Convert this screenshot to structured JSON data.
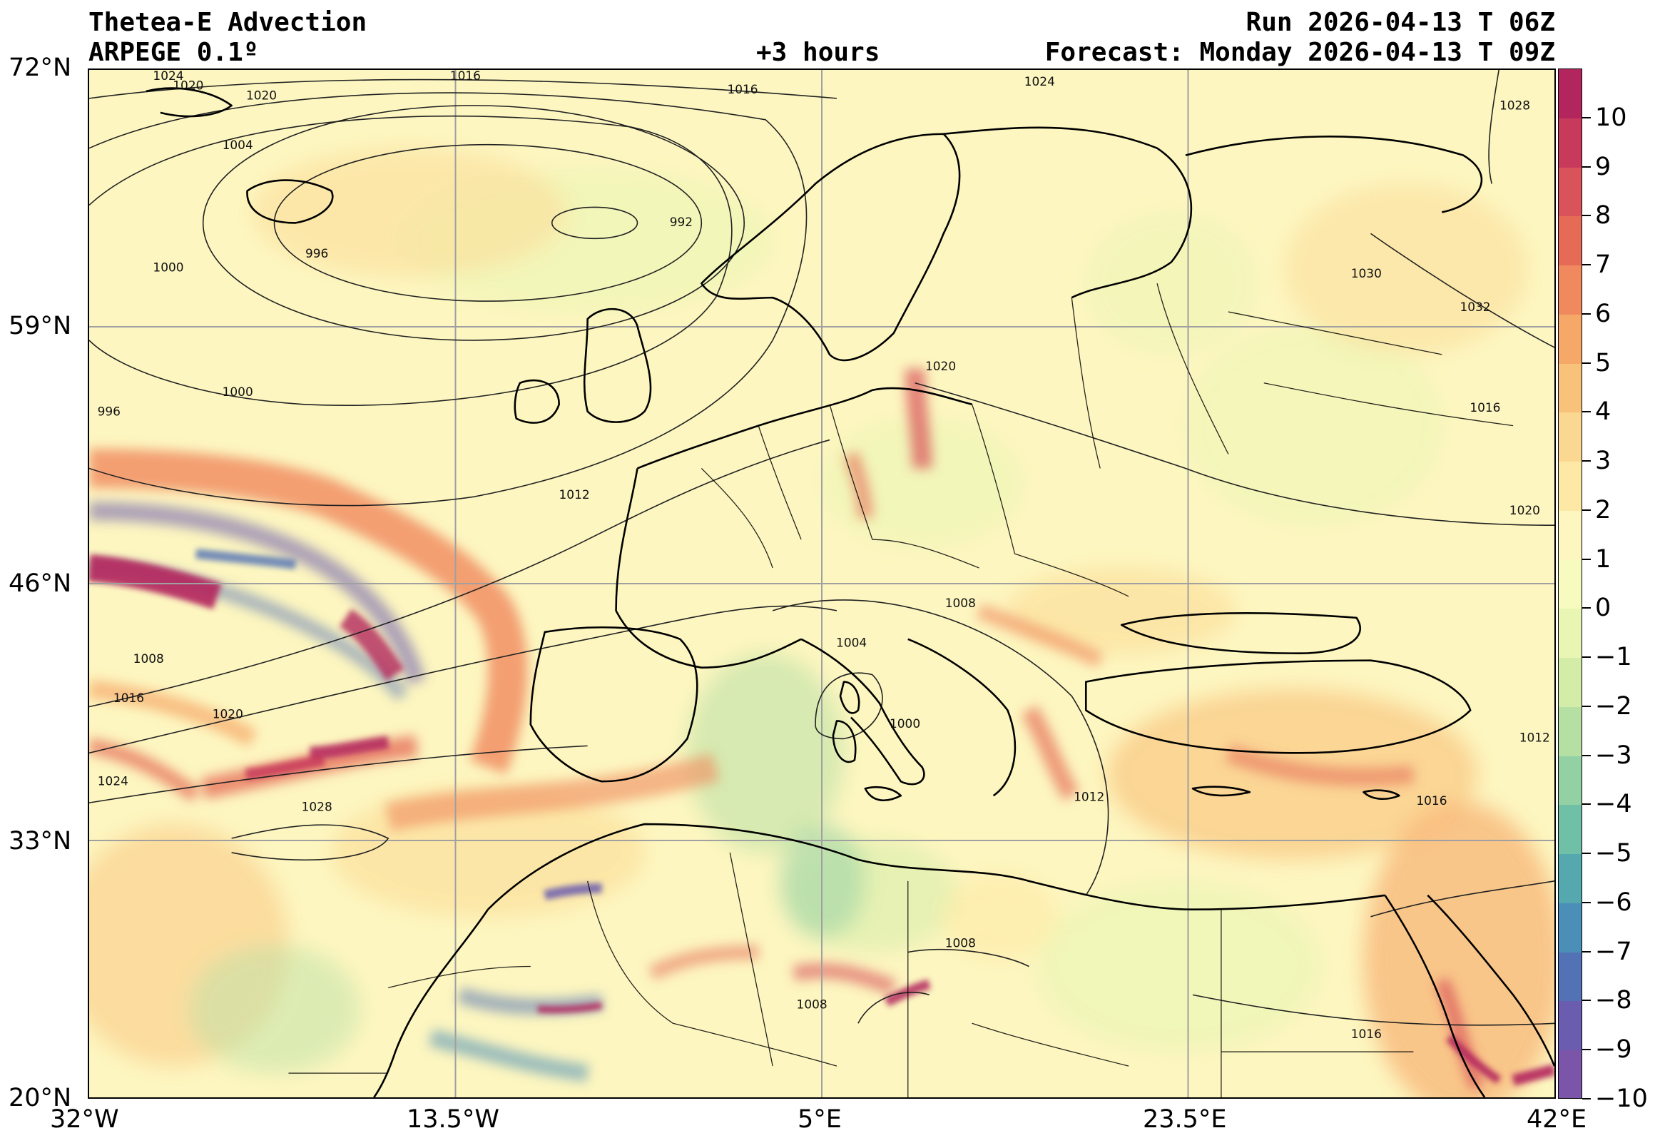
{
  "header": {
    "title": "Thetea-E Advection",
    "model": "ARPEGE 0.1º",
    "lead": "+3 hours",
    "run": "Run 2026-04-13 T 06Z",
    "forecast": "Forecast: Monday 2026-04-13 T 09Z"
  },
  "axes": {
    "lat_labels": [
      "72°N",
      "59°N",
      "46°N",
      "33°N",
      "20°N"
    ],
    "lon_labels": [
      "32°W",
      "13.5°W",
      "5°E",
      "23.5°E",
      "42°E"
    ],
    "lat_range": [
      20,
      72
    ],
    "lon_range": [
      -32,
      42
    ],
    "grid": true
  },
  "colorbar": {
    "ticks": [
      "10",
      "9",
      "8",
      "7",
      "6",
      "5",
      "4",
      "3",
      "2",
      "1",
      "0",
      "−1",
      "−2",
      "−3",
      "−4",
      "−5",
      "−6",
      "−7",
      "−8",
      "−9",
      "−10"
    ],
    "colors": [
      "#b2265d",
      "#c73a5c",
      "#d9535a",
      "#e66b56",
      "#f08a5e",
      "#f6a869",
      "#f9c27b",
      "#fbd891",
      "#fde9a5",
      "#fdf6c0",
      "#f7fbc0",
      "#e9f5b3",
      "#d3eda8",
      "#b6e0a3",
      "#93d1a4",
      "#70bfa7",
      "#54a8ae",
      "#4b8eb7",
      "#5372b5",
      "#6a5cae",
      "#7b55a8"
    ]
  },
  "isobars": [
    {
      "label": "992",
      "lat": 64.1,
      "lon": -2.1
    },
    {
      "label": "996",
      "lat": 62.5,
      "lon": -20.5
    },
    {
      "label": "1000",
      "lat": 61.8,
      "lon": -28.0
    },
    {
      "label": "1004",
      "lat": 68.0,
      "lon": -24.5
    },
    {
      "label": "1016",
      "lat": 70.8,
      "lon": 1.0
    },
    {
      "label": "1016",
      "lat": 71.5,
      "lon": -13.0
    },
    {
      "label": "1020",
      "lat": 71.0,
      "lon": -27.0
    },
    {
      "label": "1020",
      "lat": 70.5,
      "lon": -23.3
    },
    {
      "label": "1024",
      "lat": 71.5,
      "lon": -28.0
    },
    {
      "label": "1024",
      "lat": 71.2,
      "lon": 16.0
    },
    {
      "label": "1028",
      "lat": 70.0,
      "lon": 40.0
    },
    {
      "label": "1000",
      "lat": 55.5,
      "lon": -24.5
    },
    {
      "label": "996",
      "lat": 54.5,
      "lon": -31.0
    },
    {
      "label": "1012",
      "lat": 50.3,
      "lon": -7.5
    },
    {
      "label": "1020",
      "lat": 56.8,
      "lon": 11.0
    },
    {
      "label": "1030",
      "lat": 61.5,
      "lon": 32.5
    },
    {
      "label": "1032",
      "lat": 59.8,
      "lon": 38.0
    },
    {
      "label": "1016",
      "lat": 54.7,
      "lon": 38.5
    },
    {
      "label": "1020",
      "lat": 49.5,
      "lon": 40.5
    },
    {
      "label": "1008",
      "lat": 44.8,
      "lon": 12.0
    },
    {
      "label": "1004",
      "lat": 42.8,
      "lon": 6.5
    },
    {
      "label": "1008",
      "lat": 42.0,
      "lon": -29.0
    },
    {
      "label": "1016",
      "lat": 40.0,
      "lon": -30.0
    },
    {
      "label": "1020",
      "lat": 39.2,
      "lon": -25.0
    },
    {
      "label": "1024",
      "lat": 35.8,
      "lon": -30.8
    },
    {
      "label": "1028",
      "lat": 34.5,
      "lon": -20.5
    },
    {
      "label": "1000",
      "lat": 38.7,
      "lon": 9.2
    },
    {
      "label": "1012",
      "lat": 35.0,
      "lon": 18.5
    },
    {
      "label": "1016",
      "lat": 34.8,
      "lon": 35.8
    },
    {
      "label": "1012",
      "lat": 38.0,
      "lon": 41.0
    },
    {
      "label": "1008",
      "lat": 27.6,
      "lon": 12.0
    },
    {
      "label": "1008",
      "lat": 24.5,
      "lon": 4.5
    },
    {
      "label": "1016",
      "lat": 23.0,
      "lon": 32.5
    }
  ]
}
